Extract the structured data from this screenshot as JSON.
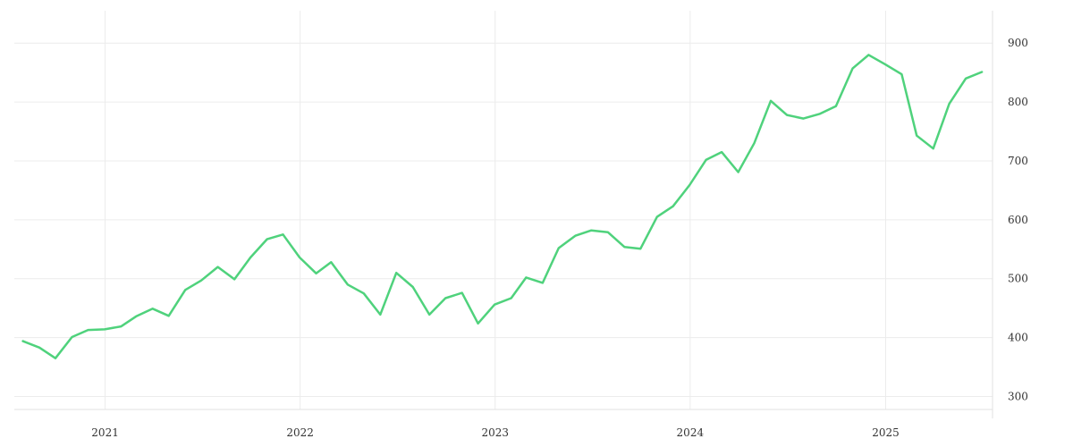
{
  "colors": {
    "series": "#4fd27c",
    "grid": "#ececec",
    "axis_text": "#333333"
  },
  "chart_data": {
    "type": "line",
    "title": "",
    "xlabel": "",
    "ylabel": "",
    "ylim": [
      278,
      955
    ],
    "xlim": [
      "2020-07-15",
      "2025-07-20"
    ],
    "y_axis_side": "right",
    "grid": true,
    "legend": "none",
    "y_ticks": [
      300,
      400,
      500,
      600,
      700,
      800,
      900
    ],
    "x_ticks": [
      {
        "date": "2021-01-01",
        "label": "2021"
      },
      {
        "date": "2022-01-01",
        "label": "2022"
      },
      {
        "date": "2023-01-01",
        "label": "2023"
      },
      {
        "date": "2024-01-01",
        "label": "2024"
      },
      {
        "date": "2025-01-01",
        "label": "2025"
      }
    ],
    "series": [
      {
        "x": [
          "2020-07-31",
          "2020-08-31",
          "2020-09-30",
          "2020-10-31",
          "2020-11-30",
          "2020-12-31",
          "2021-01-31",
          "2021-02-28",
          "2021-03-31",
          "2021-04-30",
          "2021-05-31",
          "2021-06-30",
          "2021-07-31",
          "2021-08-31",
          "2021-09-30",
          "2021-10-31",
          "2021-11-30",
          "2021-12-31",
          "2022-01-31",
          "2022-02-28",
          "2022-03-31",
          "2022-04-30",
          "2022-05-31",
          "2022-06-30",
          "2022-07-31",
          "2022-08-31",
          "2022-09-30",
          "2022-10-31",
          "2022-11-30",
          "2022-12-31",
          "2023-01-31",
          "2023-02-28",
          "2023-03-31",
          "2023-04-30",
          "2023-05-31",
          "2023-06-30",
          "2023-07-31",
          "2023-08-31",
          "2023-09-30",
          "2023-10-31",
          "2023-11-30",
          "2023-12-31",
          "2024-01-31",
          "2024-02-29",
          "2024-03-31",
          "2024-04-30",
          "2024-05-31",
          "2024-06-30",
          "2024-07-31",
          "2024-08-31",
          "2024-09-30",
          "2024-10-31",
          "2024-11-30",
          "2024-12-31",
          "2025-01-31",
          "2025-02-28",
          "2025-03-31",
          "2025-04-30",
          "2025-05-31",
          "2025-06-30"
        ],
        "values": [
          394,
          383,
          365,
          401,
          413,
          414,
          419,
          436,
          449,
          437,
          481,
          497,
          520,
          499,
          536,
          567,
          575,
          536,
          509,
          528,
          490,
          475,
          439,
          510,
          486,
          439,
          467,
          476,
          424,
          456,
          467,
          502,
          493,
          552,
          573,
          582,
          579,
          554,
          551,
          605,
          623,
          659,
          702,
          715,
          681,
          730,
          802,
          778,
          772,
          780,
          793,
          857,
          880,
          864,
          847,
          743,
          721,
          797,
          840,
          851
        ]
      }
    ]
  }
}
